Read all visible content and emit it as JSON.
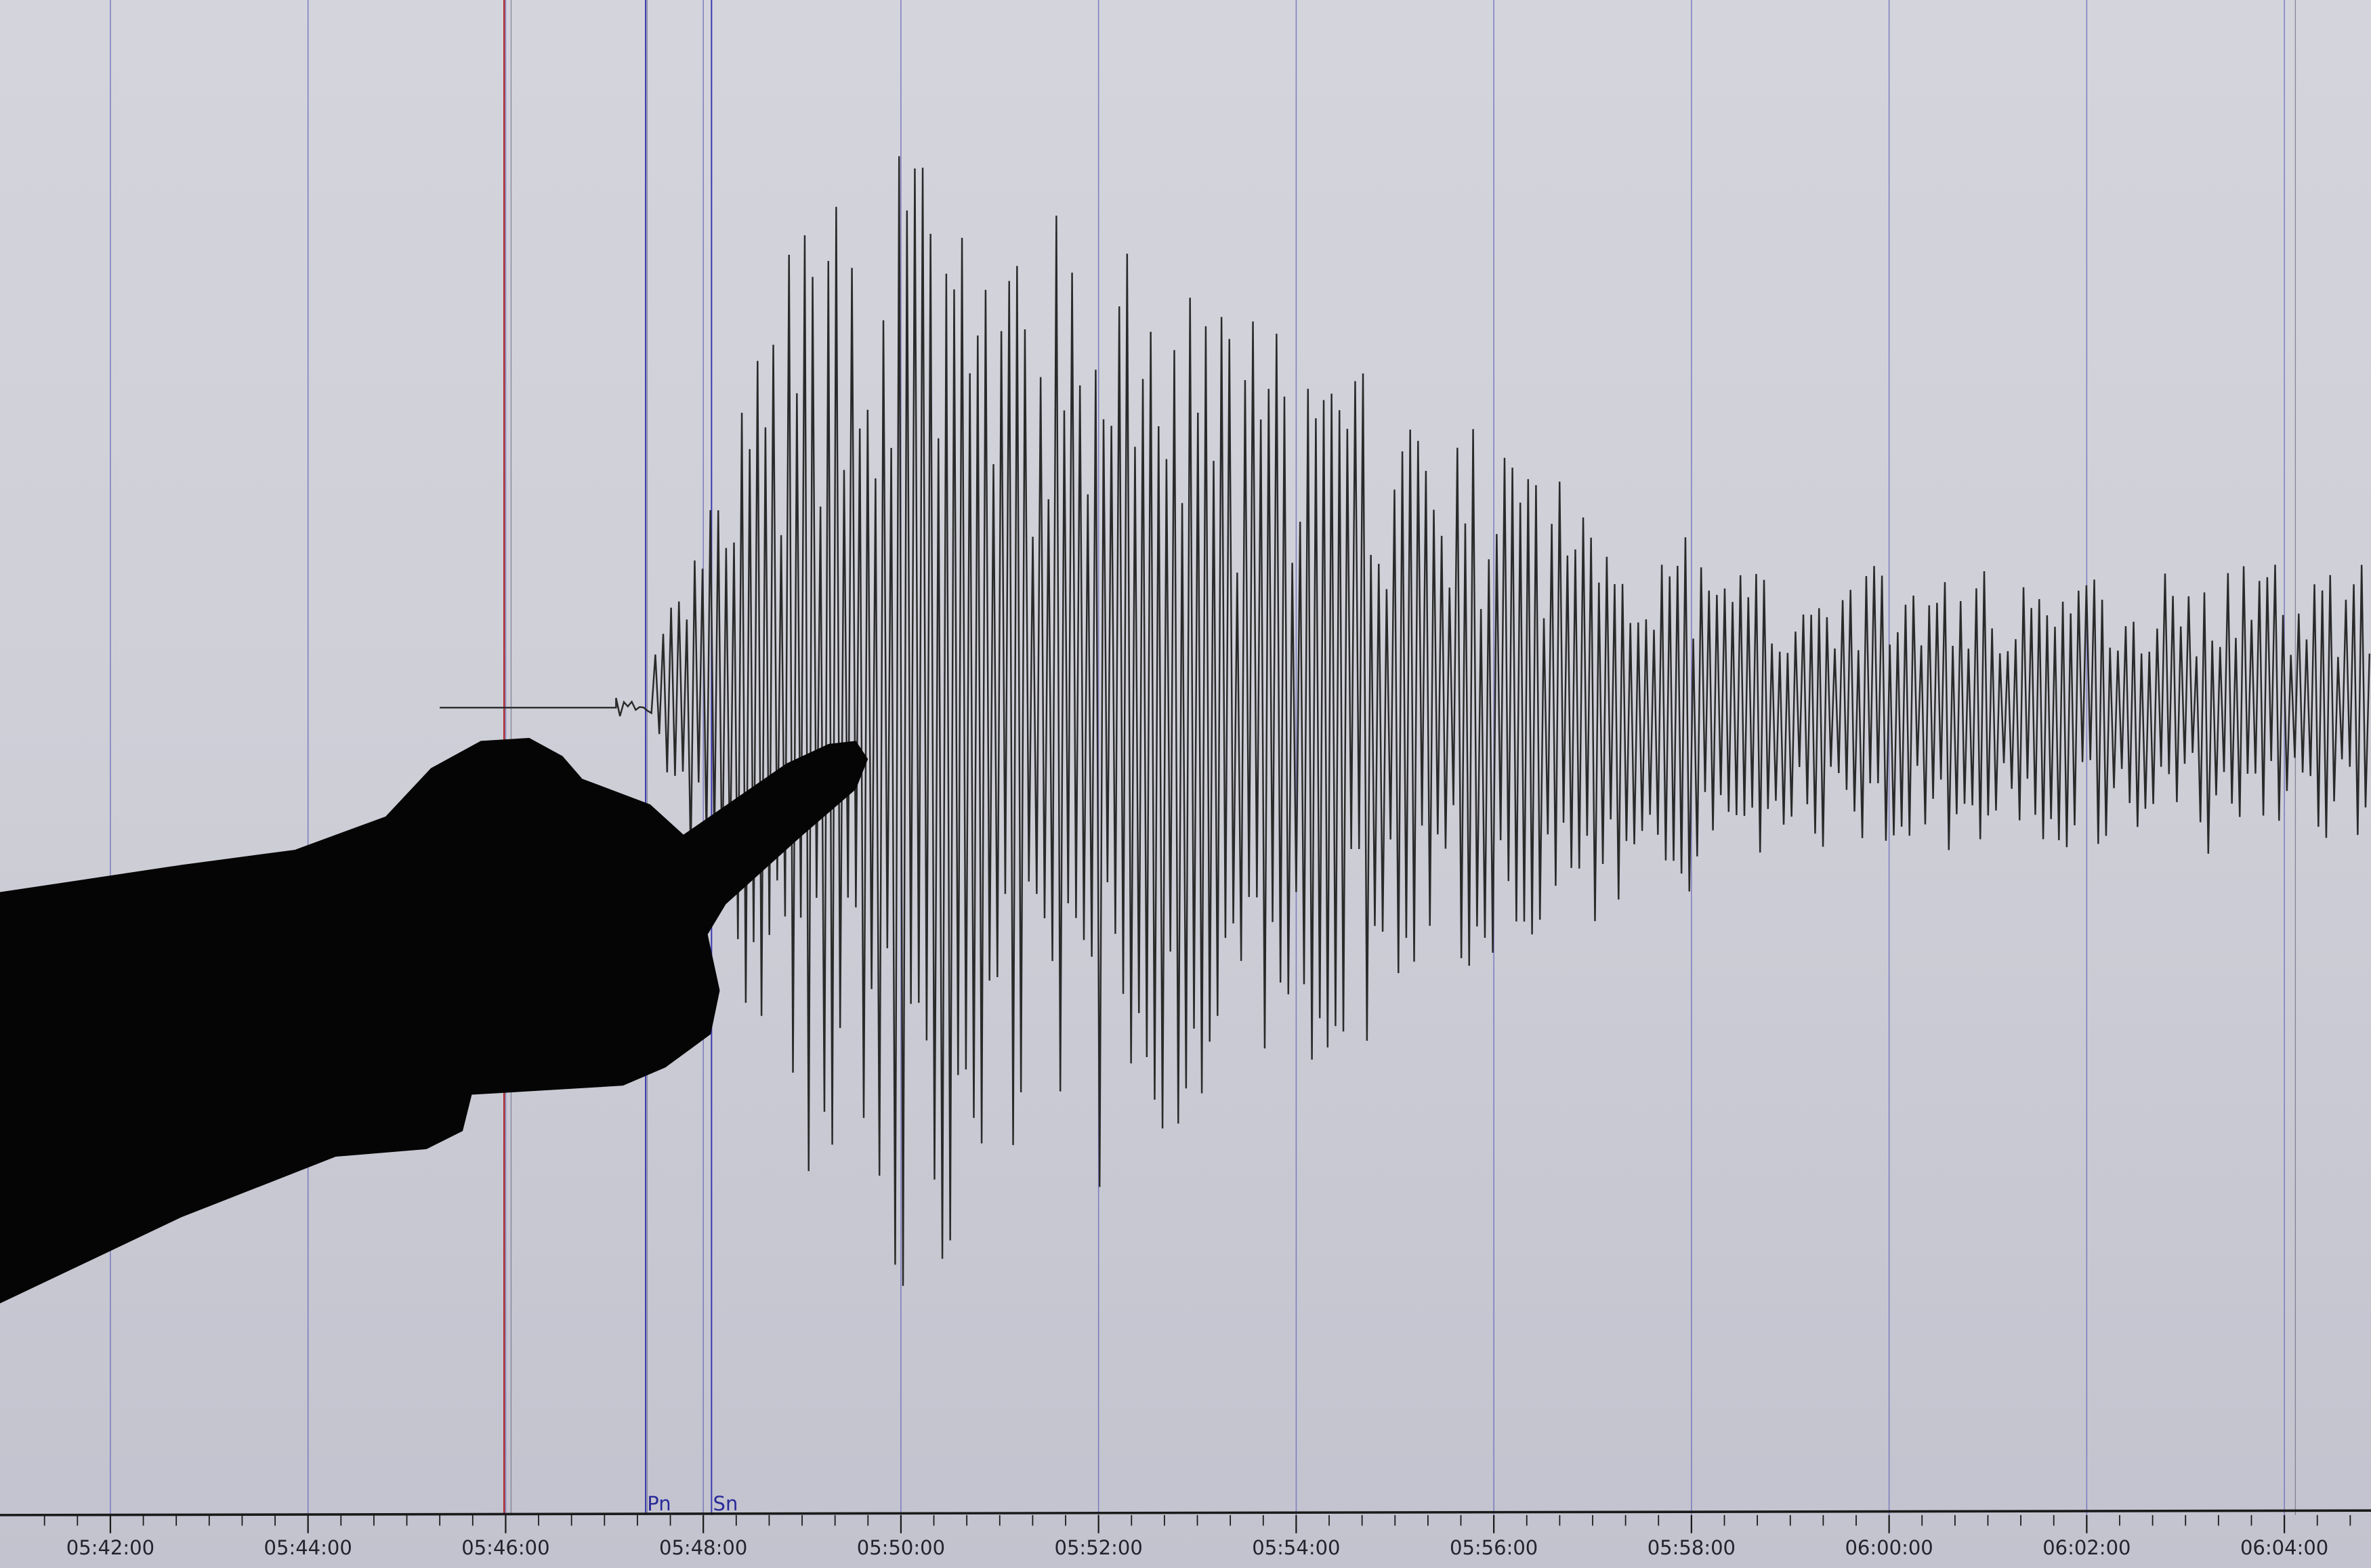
{
  "chart_data": {
    "type": "line",
    "title": "",
    "xlabel": "",
    "ylabel": "",
    "x_tick_labels": [
      "05:42:00",
      "05:44:00",
      "05:46:00",
      "05:48:00",
      "05:50:00",
      "05:52:00",
      "05:54:00",
      "05:56:00",
      "05:58:00",
      "06:00:00",
      "06:02:00",
      "06:04:00"
    ],
    "xlim": [
      "05:41:30",
      "06:04:30"
    ],
    "phase_markers": [
      {
        "label": "Pn",
        "time": "05:47:25",
        "color": "#3a3ab0"
      },
      {
        "label": "Sn",
        "time": "05:48:05",
        "color": "#3a3ab0"
      }
    ],
    "event_marker": {
      "time": "05:46:00",
      "color": "#b02020"
    },
    "trace": {
      "start": "05:45:20",
      "onset": "05:47:30",
      "peak_window": [
        "05:49:00",
        "05:51:30"
      ],
      "color": "#2a2a2a"
    },
    "grid": true,
    "colors": {
      "background": "#d0d0d9",
      "gridline": "#6a6ab8",
      "axis": "#1a1a1a",
      "silhouette": "#050505"
    }
  }
}
